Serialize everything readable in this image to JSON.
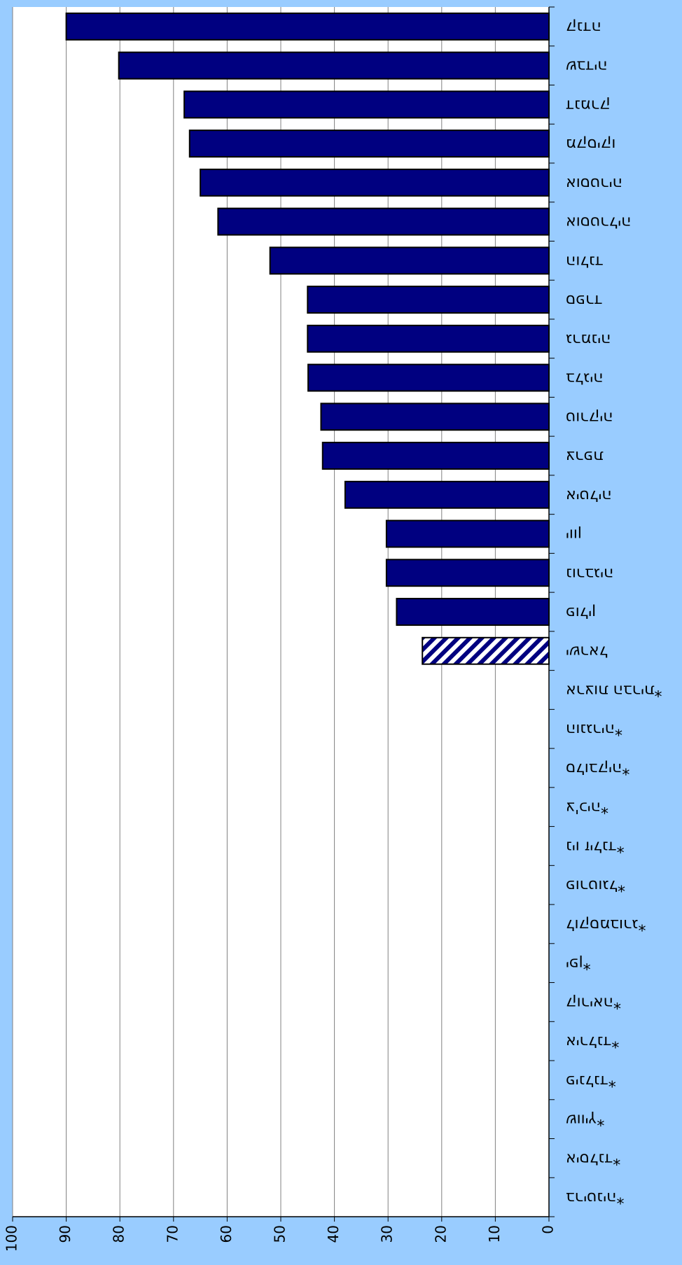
{
  "chart_data": {
    "type": "hbar",
    "categories": [
      "קנדה",
      "שבדיה",
      "דנמרק",
      "מקסיקו",
      "אוסטריה",
      "אוסטרליה",
      "הולנד",
      "ספרד",
      "גרמניה",
      "בלגיה",
      "טורקיה",
      "צרפת",
      "איטליה",
      "יוון",
      "נורבגיה",
      "פולין",
      "ישראל",
      "ארצות הברית*",
      "הונגריה*",
      "סלובקיה*",
      "צ'כיה*",
      "ניו זילנד*",
      "פורטוגל*",
      "לוקסמבורג*",
      "יפן*",
      "קוריאה*",
      "אירלנד*",
      "פינלנד*",
      "שוויץ*",
      "איסלנד*",
      "בריטניה*"
    ],
    "values": [
      90,
      80.2,
      68,
      67,
      65,
      61.7,
      52,
      45,
      45,
      44.9,
      42.5,
      42.2,
      38,
      30.3,
      30.3,
      28.4,
      23.6,
      null,
      null,
      null,
      null,
      null,
      null,
      null,
      null,
      null,
      null,
      null,
      null,
      null,
      null
    ],
    "bar_fills": [
      "solid",
      "solid",
      "solid",
      "solid",
      "solid",
      "solid",
      "solid",
      "solid",
      "solid",
      "solid",
      "solid",
      "solid",
      "solid",
      "solid",
      "solid",
      "solid",
      "hatched",
      "solid",
      "solid",
      "solid",
      "solid",
      "solid",
      "solid",
      "solid",
      "solid",
      "solid",
      "solid",
      "solid",
      "solid",
      "solid",
      "solid"
    ],
    "color": "#000080",
    "xlim": [
      0,
      100
    ],
    "xticks": [
      0,
      10,
      20,
      30,
      40,
      50,
      60,
      70,
      80,
      90,
      100
    ],
    "grid": true
  }
}
